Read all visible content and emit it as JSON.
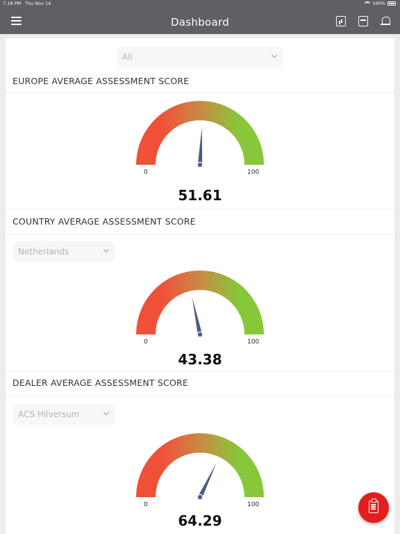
{
  "status_bar": {
    "time": "7:18 PM",
    "date": "Thu Nov 14",
    "battery": "100%"
  },
  "app_bar": {
    "title": "Dashboard"
  },
  "filters": {
    "region": "All"
  },
  "gauges": [
    {
      "title": "EUROPE AVERAGE ASSESSMENT SCORE",
      "min": "0",
      "max": "100",
      "value": 51.61,
      "value_label": "51.61"
    },
    {
      "title": "COUNTRY AVERAGE ASSESSMENT SCORE",
      "selector": "Netherlands",
      "min": "0",
      "max": "100",
      "value": 43.38,
      "value_label": "43.38"
    },
    {
      "title": "DEALER AVERAGE ASSESSMENT SCORE",
      "selector": "ACS Hilversum",
      "min": "0",
      "max": "100",
      "value": 64.29,
      "value_label": "64.29"
    }
  ],
  "colors": {
    "low": "#f05038",
    "mid": "#c98a45",
    "high": "#86c83a",
    "needle": "#4a5a82",
    "fab": "#e41e1e"
  },
  "icons": {
    "menu": "hamburger-icon",
    "report": "report-icon",
    "card": "card-icon",
    "bell": "bell-icon",
    "fab": "clipboard-add-icon"
  }
}
